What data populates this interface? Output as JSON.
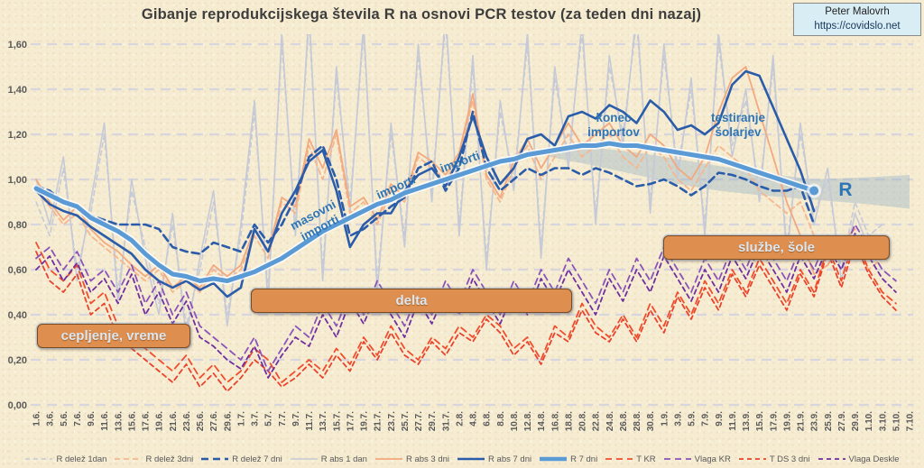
{
  "header": {
    "title": "Gibanje reprodukcijskega števila R na osnovi PCR testov (za teden dni nazaj)",
    "credit_name": "Peter Malovrh",
    "credit_url": "https://covidslo.net"
  },
  "annotations": {
    "box_cepljenje": "cepljenje, vreme",
    "box_delta": "delta",
    "box_sluzbe": "službe, šole",
    "masovni_importi": "masovni\nimporti",
    "importi_1": "importi",
    "importi_2": "importi",
    "konec_importov": "konec\nimportov",
    "testiranje_solarjev": "testiranje\nšolarjev",
    "r_band_label": "R"
  },
  "colors": {
    "background": "#f6ecd2",
    "title_text": "#3d3d3d",
    "axis_text": "#595959",
    "gridline": "#d7d4dd",
    "annotation_blue": "#2e75b6",
    "annotation_box_fill": "#de8e4e",
    "annotation_box_text": "#dbe8f4",
    "credit_box_fill": "#d9edf4",
    "forecast_band": "#7fa7c0"
  },
  "chart_data": {
    "type": "line",
    "title": "Gibanje reprodukcijskega števila R na osnovi PCR testov (za teden dni nazaj)",
    "xlabel": "",
    "ylabel": "",
    "ylim": [
      0,
      1.6
    ],
    "grid": true,
    "legend_position": "bottom",
    "ytick_labels": [
      "0,00",
      "0,20",
      "0,40",
      "0,60",
      "0,80",
      "1,00",
      "1,20",
      "1,40",
      "1,60"
    ],
    "categories": [
      "1.6.",
      "3.6.",
      "5.6.",
      "7.6.",
      "9.6.",
      "11.6.",
      "13.6.",
      "15.6.",
      "17.6.",
      "19.6.",
      "21.6.",
      "23.6.",
      "25.6.",
      "27.6.",
      "29.6.",
      "1.7.",
      "3.7.",
      "5.7.",
      "7.7.",
      "9.7.",
      "11.7.",
      "13.7.",
      "15.7.",
      "17.7.",
      "19.7.",
      "21.7.",
      "23.7.",
      "25.7.",
      "27.7.",
      "29.7.",
      "31.7.",
      "2.8.",
      "4.8.",
      "6.8.",
      "8.8.",
      "10.8.",
      "12.8.",
      "14.8.",
      "16.8.",
      "18.8.",
      "20.8.",
      "22.8.",
      "24.8.",
      "26.8.",
      "28.8.",
      "30.8.",
      "1.9.",
      "3.9.",
      "5.9.",
      "7.9.",
      "9.9.",
      "11.9.",
      "13.9.",
      "15.9.",
      "17.9.",
      "19.9.",
      "21.9.",
      "23.9.",
      "25.9.",
      "27.9.",
      "29.9.",
      "1.10.",
      "3.10.",
      "5.10.",
      "7.10."
    ],
    "series": [
      {
        "id": "r_delez_1dan",
        "label": "R delež 1dan",
        "color": "#c6cad6",
        "width": 1.6,
        "dash": "5 4",
        "values": [
          0.9,
          0.75,
          1.05,
          0.6,
          0.85,
          1.2,
          0.5,
          0.95,
          0.7,
          0.45,
          0.8,
          0.35,
          0.6,
          0.9,
          0.4,
          0.75,
          1.3,
          0.5,
          1.6,
          0.8,
          1.7,
          0.6,
          1.45,
          0.9,
          1.65,
          0.55,
          1.2,
          0.75,
          1.55,
          0.95,
          1.7,
          0.8,
          1.5,
          0.65,
          1.3,
          1.0,
          1.6,
          0.7,
          1.45,
          1.1,
          1.65,
          0.85,
          1.5,
          1.2,
          1.7,
          0.9,
          1.55,
          1.05,
          1.4,
          0.8,
          1.6,
          1.15,
          1.35,
          0.95,
          1.5,
          0.7,
          1.2,
          0.85,
          1.0,
          0.6,
          0.9,
          0.75,
          0.8,
          null,
          null
        ]
      },
      {
        "id": "r_delez_3dni",
        "label": "R delež 3dni",
        "color": "#f5b78d",
        "width": 1.8,
        "dash": "6 4",
        "values": [
          0.95,
          0.88,
          0.8,
          0.85,
          0.75,
          0.7,
          0.65,
          0.6,
          0.55,
          0.6,
          0.5,
          0.55,
          0.5,
          0.6,
          0.55,
          0.6,
          0.75,
          0.65,
          0.9,
          0.85,
          1.15,
          1.0,
          1.2,
          0.85,
          0.9,
          0.8,
          0.95,
          0.9,
          1.1,
          1.05,
          1.0,
          1.1,
          1.35,
          1.0,
          0.9,
          1.05,
          1.15,
          1.0,
          1.1,
          1.2,
          1.1,
          1.15,
          1.2,
          1.1,
          1.05,
          1.15,
          1.1,
          1.0,
          0.95,
          1.05,
          1.15,
          1.1,
          1.05,
          0.95,
          0.9,
          0.85,
          0.9,
          0.75,
          0.7,
          0.65,
          0.7,
          0.6,
          0.65,
          null,
          null
        ]
      },
      {
        "id": "r_delez_7dni",
        "label": "R delež 7 dni",
        "color": "#2a5caa",
        "width": 2.6,
        "dash": "8 5",
        "values": [
          0.97,
          0.95,
          0.9,
          0.88,
          0.84,
          0.82,
          0.8,
          0.8,
          0.8,
          0.78,
          0.7,
          0.68,
          0.67,
          0.72,
          0.7,
          0.68,
          0.8,
          0.72,
          0.8,
          0.92,
          1.1,
          1.15,
          1.0,
          0.75,
          0.78,
          0.83,
          0.88,
          0.92,
          1.05,
          1.08,
          0.95,
          1.05,
          1.3,
          1.05,
          0.95,
          1.0,
          1.05,
          1.02,
          1.05,
          1.05,
          1.02,
          1.05,
          1.03,
          1.0,
          0.97,
          0.98,
          1.0,
          0.97,
          0.93,
          0.97,
          1.03,
          1.02,
          1.0,
          0.97,
          0.95,
          0.95,
          0.97,
          0.8,
          null,
          null,
          null,
          null,
          null,
          null,
          null
        ]
      },
      {
        "id": "r_abs_1dan",
        "label": "R abs 1 dan",
        "color": "#c6cad6",
        "width": 1.6,
        "dash": "",
        "values": [
          1.0,
          0.8,
          1.1,
          0.55,
          0.9,
          1.25,
          0.45,
          1.0,
          0.65,
          0.4,
          0.85,
          0.3,
          0.65,
          0.95,
          0.35,
          0.8,
          1.35,
          0.45,
          1.65,
          0.75,
          1.75,
          0.55,
          1.5,
          0.85,
          1.7,
          0.5,
          1.25,
          0.7,
          1.6,
          0.9,
          1.75,
          0.75,
          1.55,
          0.6,
          1.35,
          0.95,
          1.65,
          0.65,
          1.5,
          1.05,
          1.7,
          0.8,
          1.55,
          1.15,
          1.75,
          0.85,
          1.6,
          1.0,
          1.45,
          0.75,
          1.65,
          1.1,
          1.4,
          0.9,
          1.55,
          0.65,
          1.25,
          0.8,
          1.05,
          0.55,
          0.85,
          0.7,
          0.75,
          null,
          null
        ]
      },
      {
        "id": "r_abs_3dni",
        "label": "R abs 3 dni",
        "color": "#f3a97e",
        "width": 1.8,
        "dash": "",
        "values": [
          1.0,
          0.9,
          0.82,
          0.88,
          0.78,
          0.72,
          0.68,
          0.62,
          0.57,
          0.62,
          0.52,
          0.57,
          0.52,
          0.62,
          0.57,
          0.62,
          0.78,
          0.68,
          0.92,
          0.88,
          1.18,
          1.05,
          1.22,
          0.88,
          0.92,
          0.82,
          0.98,
          0.92,
          1.12,
          1.08,
          1.02,
          1.12,
          1.38,
          1.02,
          0.92,
          1.08,
          1.18,
          1.05,
          1.15,
          1.25,
          1.15,
          1.2,
          1.25,
          1.15,
          1.1,
          1.2,
          1.15,
          1.05,
          1.0,
          1.1,
          1.3,
          1.45,
          1.5,
          1.3,
          1.1,
          0.9,
          0.75,
          0.58,
          0.62,
          0.72,
          0.78,
          null,
          null,
          null,
          null
        ]
      },
      {
        "id": "r_abs_7dni",
        "label": "R abs 7 dni",
        "color": "#2a5caa",
        "width": 2.6,
        "dash": "",
        "values": [
          0.95,
          0.89,
          0.86,
          0.84,
          0.79,
          0.75,
          0.71,
          0.67,
          0.6,
          0.55,
          0.52,
          0.55,
          0.51,
          0.54,
          0.48,
          0.52,
          0.78,
          0.68,
          0.85,
          0.95,
          1.08,
          1.13,
          0.95,
          0.7,
          0.8,
          0.85,
          0.85,
          0.95,
          1.02,
          1.05,
          0.97,
          1.1,
          1.28,
          1.1,
          0.98,
          1.05,
          1.18,
          1.2,
          1.15,
          1.28,
          1.3,
          1.27,
          1.33,
          1.3,
          1.25,
          1.35,
          1.3,
          1.22,
          1.24,
          1.2,
          1.25,
          1.42,
          1.48,
          1.46,
          1.32,
          1.18,
          1.04,
          0.86,
          null,
          null,
          null,
          null,
          null,
          null,
          null
        ]
      },
      {
        "id": "r_7dni",
        "label": "R 7 dni",
        "color": "#5b9bd5",
        "width": 5,
        "dash": "",
        "glow": true,
        "end_marker": true,
        "values": [
          0.96,
          0.93,
          0.9,
          0.88,
          0.83,
          0.8,
          0.77,
          0.73,
          0.67,
          0.62,
          0.58,
          0.57,
          0.55,
          0.56,
          0.55,
          0.57,
          0.59,
          0.62,
          0.65,
          0.69,
          0.73,
          0.77,
          0.8,
          0.83,
          0.86,
          0.89,
          0.91,
          0.94,
          0.96,
          0.98,
          1.0,
          1.02,
          1.04,
          1.06,
          1.08,
          1.09,
          1.11,
          1.12,
          1.13,
          1.14,
          1.15,
          1.15,
          1.16,
          1.15,
          1.15,
          1.14,
          1.13,
          1.12,
          1.11,
          1.1,
          1.09,
          1.07,
          1.05,
          1.03,
          1.01,
          0.99,
          0.97,
          0.95,
          null,
          null,
          null,
          null,
          null,
          null,
          null
        ]
      },
      {
        "id": "t_kr",
        "label": "T KR",
        "color": "#f04f2e",
        "width": 1.8,
        "dash": "7 5",
        "values": [
          0.72,
          0.6,
          0.55,
          0.62,
          0.45,
          0.5,
          0.35,
          0.3,
          0.25,
          0.2,
          0.15,
          0.22,
          0.12,
          0.18,
          0.1,
          0.15,
          0.25,
          0.2,
          0.1,
          0.15,
          0.2,
          0.15,
          0.25,
          0.18,
          0.3,
          0.22,
          0.35,
          0.25,
          0.2,
          0.3,
          0.25,
          0.35,
          0.3,
          0.4,
          0.35,
          0.25,
          0.3,
          0.2,
          0.35,
          0.3,
          0.45,
          0.35,
          0.3,
          0.4,
          0.3,
          0.45,
          0.35,
          0.5,
          0.4,
          0.55,
          0.45,
          0.6,
          0.5,
          0.65,
          0.55,
          0.45,
          0.6,
          0.5,
          0.7,
          0.55,
          0.75,
          0.6,
          0.5,
          0.45,
          null
        ]
      },
      {
        "id": "vlaga_kr",
        "label": "Vlaga KR",
        "color": "#8a54b8",
        "width": 1.8,
        "dash": "7 5",
        "values": [
          0.65,
          0.7,
          0.6,
          0.68,
          0.55,
          0.6,
          0.5,
          0.62,
          0.45,
          0.55,
          0.4,
          0.5,
          0.35,
          0.3,
          0.25,
          0.2,
          0.3,
          0.15,
          0.25,
          0.35,
          0.3,
          0.45,
          0.35,
          0.5,
          0.4,
          0.55,
          0.45,
          0.35,
          0.5,
          0.4,
          0.55,
          0.45,
          0.6,
          0.5,
          0.4,
          0.55,
          0.45,
          0.6,
          0.5,
          0.65,
          0.55,
          0.45,
          0.6,
          0.5,
          0.65,
          0.55,
          0.7,
          0.6,
          0.5,
          0.65,
          0.55,
          0.7,
          0.6,
          0.75,
          0.65,
          0.55,
          0.7,
          0.6,
          0.75,
          0.65,
          0.8,
          0.7,
          0.6,
          0.55,
          null
        ]
      },
      {
        "id": "t_ds_3dni",
        "label": "T DS 3 dni",
        "color": "#e8432d",
        "width": 1.8,
        "dash": "5 4",
        "values": [
          0.68,
          0.55,
          0.5,
          0.58,
          0.4,
          0.45,
          0.3,
          0.25,
          0.2,
          0.15,
          0.1,
          0.18,
          0.08,
          0.14,
          0.06,
          0.12,
          0.2,
          0.15,
          0.08,
          0.12,
          0.18,
          0.12,
          0.22,
          0.15,
          0.28,
          0.2,
          0.32,
          0.22,
          0.18,
          0.28,
          0.22,
          0.32,
          0.28,
          0.38,
          0.32,
          0.22,
          0.28,
          0.18,
          0.32,
          0.28,
          0.42,
          0.32,
          0.28,
          0.38,
          0.28,
          0.42,
          0.32,
          0.48,
          0.38,
          0.52,
          0.42,
          0.58,
          0.48,
          0.62,
          0.52,
          0.42,
          0.58,
          0.48,
          0.68,
          0.52,
          0.72,
          0.58,
          0.48,
          0.42,
          null
        ]
      },
      {
        "id": "vlaga_deskle",
        "label": "Vlaga Deskle",
        "color": "#6f2fa0",
        "width": 1.8,
        "dash": "5 4",
        "values": [
          0.6,
          0.66,
          0.55,
          0.63,
          0.5,
          0.56,
          0.45,
          0.58,
          0.4,
          0.5,
          0.36,
          0.46,
          0.3,
          0.26,
          0.2,
          0.16,
          0.26,
          0.12,
          0.22,
          0.3,
          0.26,
          0.4,
          0.3,
          0.46,
          0.36,
          0.5,
          0.4,
          0.3,
          0.46,
          0.36,
          0.5,
          0.4,
          0.56,
          0.46,
          0.36,
          0.5,
          0.4,
          0.56,
          0.46,
          0.6,
          0.5,
          0.4,
          0.56,
          0.46,
          0.6,
          0.5,
          0.66,
          0.56,
          0.46,
          0.6,
          0.5,
          0.66,
          0.56,
          0.7,
          0.6,
          0.5,
          0.66,
          0.56,
          0.7,
          0.6,
          0.76,
          0.66,
          0.56,
          0.5,
          null
        ]
      }
    ],
    "forecast_band": {
      "label": "R",
      "color": "#7fa7c0",
      "upper": [
        [
          37.6,
          1.13
        ],
        [
          41,
          1.14
        ],
        [
          44,
          1.12
        ],
        [
          47,
          1.09
        ],
        [
          50,
          1.06
        ],
        [
          53,
          1.03
        ],
        [
          57,
          1.0
        ],
        [
          61,
          1.01
        ],
        [
          64,
          1.02
        ]
      ],
      "lower": [
        [
          64,
          0.87
        ],
        [
          61,
          0.89
        ],
        [
          57,
          0.91
        ],
        [
          53,
          0.93
        ],
        [
          50,
          0.95
        ],
        [
          47,
          0.98
        ],
        [
          44,
          1.02
        ],
        [
          41,
          1.06
        ],
        [
          37.6,
          1.1
        ]
      ]
    }
  }
}
